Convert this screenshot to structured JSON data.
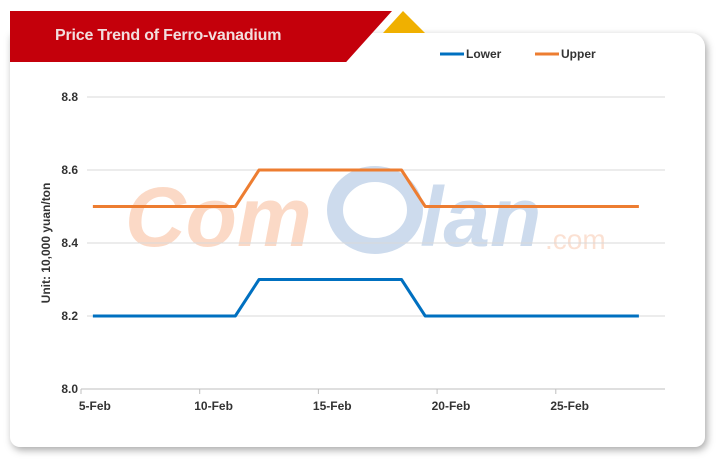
{
  "header": {
    "title": "Price Trend of Ferro-vanadium"
  },
  "watermark": {
    "text": "ComElan.com 亿览网"
  },
  "colors": {
    "banner": "#c4000b",
    "accent": "#f0b000",
    "lower": "#0070c0",
    "upper": "#ed7d31"
  },
  "chart_data": {
    "type": "line",
    "title": "Price Trend of Ferro-vanadium",
    "ylabel": "Unit: 10,000 yuan/ton",
    "xlabel": "",
    "ylim": [
      8.0,
      8.8
    ],
    "yticks": [
      "8.0",
      "8.2",
      "8.4",
      "8.6",
      "8.8"
    ],
    "x": [
      "5-Feb",
      "6-Feb",
      "7-Feb",
      "8-Feb",
      "9-Feb",
      "10-Feb",
      "11-Feb",
      "12-Feb",
      "13-Feb",
      "14-Feb",
      "15-Feb",
      "16-Feb",
      "17-Feb",
      "18-Feb",
      "19-Feb",
      "20-Feb",
      "21-Feb",
      "22-Feb",
      "23-Feb",
      "24-Feb",
      "25-Feb",
      "26-Feb",
      "27-Feb",
      "28-Feb"
    ],
    "xtick_labels": [
      "5-Feb",
      "10-Feb",
      "15-Feb",
      "20-Feb",
      "25-Feb"
    ],
    "legend_position": "top-right",
    "grid": "horizontal",
    "series": [
      {
        "name": "Lower",
        "color": "#0070c0",
        "values": [
          8.2,
          8.2,
          8.2,
          8.2,
          8.2,
          8.2,
          8.2,
          8.3,
          8.3,
          8.3,
          8.3,
          8.3,
          8.3,
          8.3,
          8.2,
          8.2,
          8.2,
          8.2,
          8.2,
          8.2,
          8.2,
          8.2,
          8.2,
          8.2
        ]
      },
      {
        "name": "Upper",
        "color": "#ed7d31",
        "values": [
          8.5,
          8.5,
          8.5,
          8.5,
          8.5,
          8.5,
          8.5,
          8.6,
          8.6,
          8.6,
          8.6,
          8.6,
          8.6,
          8.6,
          8.5,
          8.5,
          8.5,
          8.5,
          8.5,
          8.5,
          8.5,
          8.5,
          8.5,
          8.5
        ]
      }
    ]
  }
}
